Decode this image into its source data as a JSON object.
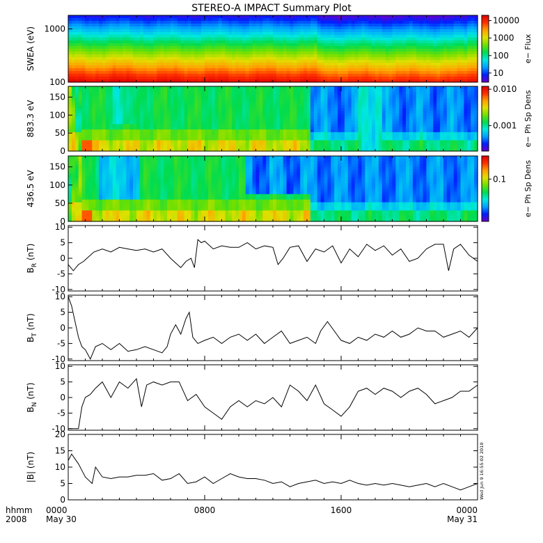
{
  "title": "STEREO-A IMPACT Summary Plot",
  "x_axis": {
    "label_line1": "hhmm",
    "label_line2": "2008",
    "range_hours": [
      0,
      24
    ],
    "ticks": [
      {
        "hour": 0,
        "label": "0000",
        "sub": "May 30"
      },
      {
        "hour": 8,
        "label": "0800",
        "sub": ""
      },
      {
        "hour": 16,
        "label": "1600",
        "sub": ""
      },
      {
        "hour": 24,
        "label": "0000",
        "sub": "May 31"
      }
    ]
  },
  "stamp": "Wed Jun  9 16:55:02 2010",
  "colors": {
    "scale": [
      "#6a00c8",
      "#0020ff",
      "#00a0ff",
      "#00e8e0",
      "#00dc50",
      "#70e000",
      "#e0e000",
      "#ffa000",
      "#ff3000",
      "#e00000"
    ],
    "trace": "#000000"
  },
  "chart_data": [
    {
      "type": "heatmap",
      "panel": "swea",
      "ylabel": "SWEA (eV)",
      "y_scale": "log",
      "ylim": [
        100,
        1800
      ],
      "y_ticks": [
        {
          "v": 1000,
          "label": "1000"
        },
        {
          "v": 100,
          "label": "100"
        }
      ],
      "colorbar": {
        "label": "e− Flux",
        "scale": "log",
        "range": [
          3,
          20000
        ],
        "ticks": [
          {
            "v": 10000,
            "label": "10000"
          },
          {
            "v": 1000,
            "label": "1000"
          },
          {
            "v": 100,
            "label": "100"
          },
          {
            "v": 10,
            "label": "10"
          }
        ]
      },
      "description_values": {
        "max_flux_low_energy": 20000,
        "min_flux_high_energy": 5
      }
    },
    {
      "type": "heatmap",
      "panel": "pad_883",
      "ylabel": "883.3 eV",
      "y_unit": "deg",
      "ylim": [
        0,
        180
      ],
      "y_ticks": [
        {
          "v": 150,
          "label": "150"
        },
        {
          "v": 100,
          "label": "100"
        },
        {
          "v": 50,
          "label": "50"
        },
        {
          "v": 0,
          "label": "0"
        }
      ],
      "colorbar": {
        "label": "e− Ph Sp Dens",
        "scale": "log",
        "range": [
          0.0002,
          0.012
        ],
        "ticks": [
          {
            "v": 0.01,
            "label": "0.010"
          },
          {
            "v": 0.001,
            "label": "0.001"
          }
        ]
      }
    },
    {
      "type": "heatmap",
      "panel": "pad_436",
      "ylabel": "436.5 eV",
      "y_unit": "deg",
      "ylim": [
        0,
        180
      ],
      "y_ticks": [
        {
          "v": 150,
          "label": "150"
        },
        {
          "v": 100,
          "label": "100"
        },
        {
          "v": 50,
          "label": "50"
        },
        {
          "v": 0,
          "label": "0"
        }
      ],
      "colorbar": {
        "label": "e− Ph Sp Dens",
        "scale": "log",
        "range": [
          0.008,
          0.4
        ],
        "ticks": [
          {
            "v": 0.1,
            "label": "0.1"
          }
        ]
      }
    },
    {
      "type": "line",
      "panel": "br",
      "ylabel": "BR (nT)",
      "ylabel_main": "B",
      "ylabel_sub": "R",
      "ylabel_unit": " (nT)",
      "ylim": [
        -10.5,
        10.5
      ],
      "y_ticks": [
        10,
        5,
        0,
        -5,
        -10
      ],
      "x": [
        0,
        0.3,
        0.6,
        0.9,
        1.2,
        1.5,
        2,
        2.5,
        3,
        3.5,
        4,
        4.5,
        5,
        5.5,
        6,
        6.3,
        6.6,
        6.9,
        7.2,
        7.4,
        7.6,
        7.8,
        8,
        8.5,
        9,
        9.5,
        10,
        10.5,
        11,
        11.5,
        12,
        12.3,
        12.6,
        13,
        13.5,
        14,
        14.5,
        15,
        15.5,
        16,
        16.5,
        17,
        17.5,
        18,
        18.5,
        19,
        19.5,
        20,
        20.5,
        21,
        21.5,
        22,
        22.3,
        22.6,
        23,
        23.5,
        24
      ],
      "y": [
        -2,
        -4,
        -2,
        -1,
        0.5,
        2,
        3,
        2,
        3.5,
        3,
        2.5,
        3,
        2,
        3,
        0,
        -1.5,
        -3,
        -1,
        0,
        -3,
        6,
        5,
        5.5,
        3,
        4,
        3.5,
        3.5,
        5,
        3,
        4,
        3.5,
        -2,
        0,
        3.5,
        4,
        -1,
        3,
        2,
        4,
        -1.5,
        3,
        0.5,
        4.5,
        2.5,
        4,
        1,
        3,
        -1,
        0,
        3,
        4.5,
        4.5,
        -4,
        3,
        4.5,
        1,
        -1
      ]
    },
    {
      "type": "line",
      "panel": "bt",
      "ylabel": "BT (nT)",
      "ylabel_main": "B",
      "ylabel_sub": "T",
      "ylabel_unit": " (nT)",
      "ylim": [
        -10.5,
        10.5
      ],
      "y_ticks": [
        10,
        5,
        0,
        -5,
        -10
      ],
      "x": [
        0,
        0.2,
        0.4,
        0.6,
        0.8,
        1.0,
        1.3,
        1.6,
        2,
        2.5,
        3,
        3.5,
        4,
        4.5,
        5,
        5.5,
        5.8,
        6,
        6.3,
        6.6,
        6.9,
        7.1,
        7.3,
        7.6,
        8,
        8.5,
        9,
        9.5,
        10,
        10.5,
        11,
        11.5,
        12,
        12.5,
        13,
        13.5,
        14,
        14.5,
        14.8,
        15.2,
        15.6,
        16,
        16.5,
        17,
        17.5,
        18,
        18.5,
        19,
        19.5,
        20,
        20.5,
        21,
        21.5,
        22,
        22.5,
        23,
        23.5,
        24
      ],
      "y": [
        10,
        7,
        2,
        -3,
        -6,
        -7,
        -10,
        -6,
        -5,
        -7,
        -5,
        -7.5,
        -7,
        -6,
        -7,
        -8,
        -6,
        -2,
        1,
        -2,
        3,
        5,
        -3,
        -5,
        -4,
        -3,
        -5,
        -3,
        -2,
        -4,
        -2,
        -5,
        -3,
        -1,
        -5,
        -4,
        -3,
        -5,
        -1,
        2,
        -1,
        -4,
        -5,
        -3,
        -4,
        -2,
        -3,
        -1,
        -3,
        -2,
        0,
        -1,
        -1,
        -3,
        -2,
        -1,
        -3,
        0
      ]
    },
    {
      "type": "line",
      "panel": "bn",
      "ylabel": "BN (nT)",
      "ylabel_main": "B",
      "ylabel_sub": "N",
      "ylabel_unit": " (nT)",
      "ylim": [
        -10.5,
        10.5
      ],
      "y_ticks": [
        10,
        5,
        0,
        -5,
        -10
      ],
      "x": [
        0,
        0.2,
        0.4,
        0.6,
        0.8,
        1.0,
        1.3,
        1.6,
        2,
        2.5,
        3,
        3.5,
        4,
        4.3,
        4.6,
        5,
        5.5,
        6,
        6.5,
        7,
        7.5,
        8,
        8.5,
        9,
        9.5,
        10,
        10.5,
        11,
        11.5,
        12,
        12.5,
        13,
        13.5,
        14,
        14.5,
        15,
        15.5,
        16,
        16.5,
        17,
        17.5,
        18,
        18.5,
        19,
        19.5,
        20,
        20.5,
        21,
        21.5,
        22,
        22.5,
        23,
        23.5,
        24
      ],
      "y": [
        -10,
        -10,
        -10,
        -10,
        -3,
        0,
        1,
        3,
        5,
        0,
        5,
        3,
        6,
        -3,
        4,
        5,
        4,
        5,
        5,
        -1,
        1,
        -3,
        -5,
        -7,
        -3,
        -1,
        -3,
        -1,
        -2,
        0,
        -3,
        4,
        2,
        -1,
        4,
        -2,
        -4,
        -6,
        -3,
        2,
        3,
        1,
        3,
        2,
        0,
        2,
        3,
        1,
        -2,
        -1,
        0,
        2,
        2,
        4
      ]
    },
    {
      "type": "line",
      "panel": "bmag",
      "ylabel": "|B| (nT)",
      "ylim": [
        0,
        20
      ],
      "y_ticks": [
        20,
        15,
        10,
        5,
        0
      ],
      "x": [
        0,
        0.2,
        0.4,
        0.6,
        0.8,
        1.0,
        1.2,
        1.4,
        1.6,
        2,
        2.5,
        3,
        3.5,
        4,
        4.5,
        5,
        5.5,
        6,
        6.5,
        7,
        7.5,
        8,
        8.5,
        9,
        9.5,
        10,
        10.5,
        11,
        11.5,
        12,
        12.5,
        13,
        13.5,
        14,
        14.5,
        15,
        15.5,
        16,
        16.5,
        17,
        17.5,
        18,
        18.5,
        19,
        19.5,
        20,
        20.5,
        21,
        21.5,
        22,
        22.5,
        23,
        23.5,
        24
      ],
      "y": [
        12,
        14,
        12.5,
        11,
        9,
        7,
        6,
        5,
        10,
        7,
        6.5,
        7,
        7,
        7.5,
        7.5,
        8,
        6,
        6.5,
        8,
        5,
        5.5,
        7,
        5,
        6.5,
        8,
        7,
        6.5,
        6.5,
        6,
        5,
        5.5,
        4,
        5,
        5.5,
        6,
        5,
        5.5,
        5,
        6,
        5,
        4.5,
        5,
        4.5,
        5,
        4.5,
        4,
        4.5,
        5,
        4,
        5,
        4,
        3,
        4,
        5
      ]
    }
  ]
}
